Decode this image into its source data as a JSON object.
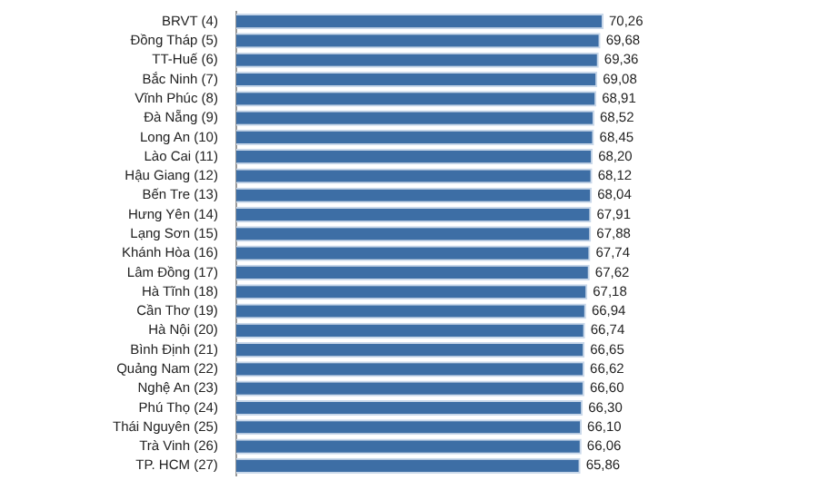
{
  "chart_data": {
    "type": "bar",
    "orientation": "horizontal",
    "categories": [
      "BRVT (4)",
      "Đồng Tháp (5)",
      "TT-Huế (6)",
      "Bắc Ninh (7)",
      "Vĩnh Phúc (8)",
      "Đà Nẵng (9)",
      "Long An (10)",
      "Lào Cai (11)",
      "Hậu Giang (12)",
      "Bến Tre (13)",
      "Hưng Yên (14)",
      "Lạng Sơn (15)",
      "Khánh Hòa (16)",
      "Lâm Đồng (17)",
      "Hà Tĩnh (18)",
      "Cần Thơ (19)",
      "Hà Nội (20)",
      "Bình Định (21)",
      "Quảng Nam (22)",
      "Nghệ An (23)",
      "Phú Thọ (24)",
      "Thái Nguyên (25)",
      "Trà Vinh (26)",
      "TP. HCM (27)"
    ],
    "values": [
      70.26,
      69.68,
      69.36,
      69.08,
      68.91,
      68.52,
      68.45,
      68.2,
      68.12,
      68.04,
      67.91,
      67.88,
      67.74,
      67.62,
      67.18,
      66.94,
      66.74,
      66.65,
      66.62,
      66.6,
      66.3,
      66.1,
      66.06,
      65.86
    ],
    "value_labels": [
      "70,26",
      "69,68",
      "69,36",
      "69,08",
      "68,91",
      "68,52",
      "68,45",
      "68,20",
      "68,12",
      "68,04",
      "67,91",
      "67,88",
      "67,74",
      "67,62",
      "67,18",
      "66,94",
      "66,74",
      "66,65",
      "66,62",
      "66,60",
      "66,30",
      "66,10",
      "66,06",
      "65,86"
    ],
    "color": "#3d6ea5"
  }
}
